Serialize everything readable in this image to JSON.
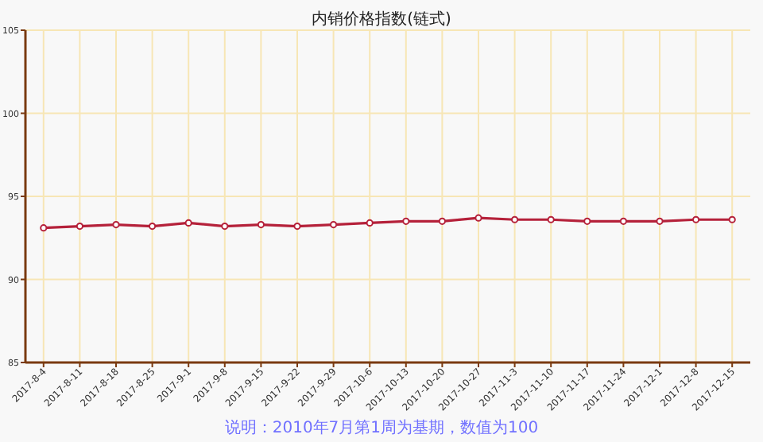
{
  "chart_data": {
    "type": "line",
    "title": "内销价格指数(链式)",
    "annotations": [
      "说明：2010年7月第1周为基期，数值为100"
    ],
    "categories": [
      "2017-8-4",
      "2017-8-11",
      "2017-8-18",
      "2017-8-25",
      "2017-9-1",
      "2017-9-8",
      "2017-9-15",
      "2017-9-22",
      "2017-9-29",
      "2017-10-6",
      "2017-10-13",
      "2017-10-20",
      "2017-10-27",
      "2017-11-3",
      "2017-11-10",
      "2017-11-17",
      "2017-11-24",
      "2017-12-1",
      "2017-12-8",
      "2017-12-15"
    ],
    "series": [
      {
        "color": "#b5213a",
        "values": [
          93.1,
          93.2,
          93.3,
          93.2,
          93.4,
          93.2,
          93.3,
          93.2,
          93.3,
          93.4,
          93.5,
          93.5,
          93.7,
          93.6,
          93.6,
          93.5,
          93.5,
          93.5,
          93.6,
          93.6
        ]
      }
    ],
    "ylim": [
      85,
      105
    ],
    "yticks": [
      85,
      90,
      95,
      100,
      105
    ],
    "grid": true,
    "marker": "circle",
    "line_style": "solid"
  }
}
